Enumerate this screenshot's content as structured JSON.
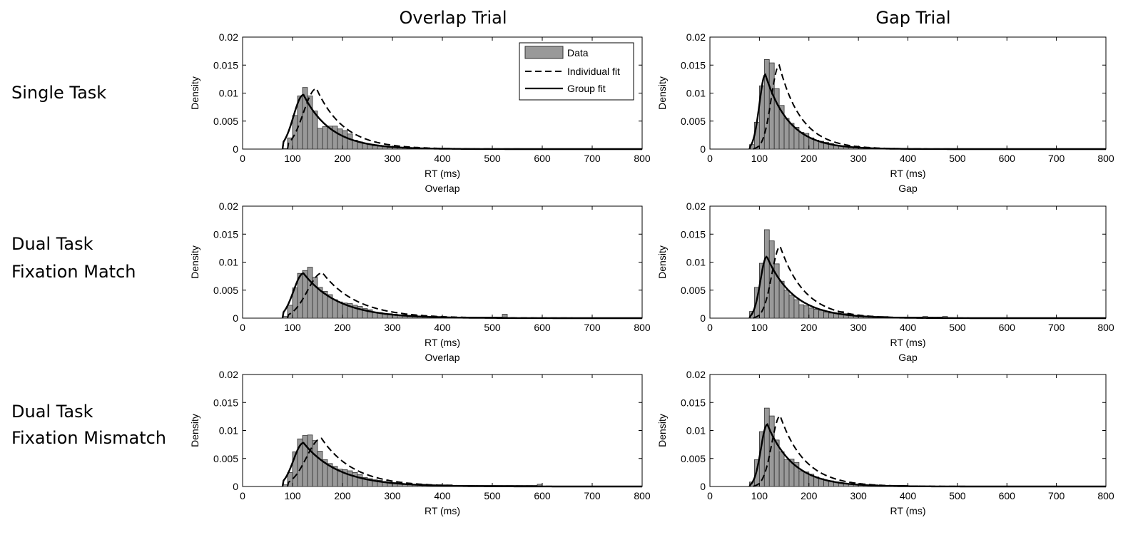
{
  "figure": {
    "column_titles": [
      "Overlap Trial",
      "Gap Trial"
    ],
    "row_labels": [
      [
        "Single Task"
      ],
      [
        "Dual Task",
        "Fixation Match"
      ],
      [
        "Dual Task",
        "Fixation Mismatch"
      ]
    ]
  },
  "colors": {
    "bar_fill": "#999999",
    "bar_stroke": "#333333",
    "line": "#000000"
  },
  "legend": {
    "entries": [
      "Data",
      "Individual fit",
      "Group fit"
    ]
  },
  "chart_data": [
    {
      "id": "single-overlap",
      "type": "bar",
      "xlabel": "RT (ms)",
      "ylabel": "Density",
      "subtitle_below": "Overlap",
      "xlim": [
        0,
        800
      ],
      "ylim": [
        0,
        0.02
      ],
      "xticks": [
        0,
        100,
        200,
        300,
        400,
        500,
        600,
        700,
        800
      ],
      "yticks": [
        0,
        0.005,
        0.01,
        0.015,
        0.02
      ],
      "ytick_labels": [
        "0",
        "0.005",
        "0.01",
        "0.015",
        "0.02"
      ],
      "bin_start": 80,
      "bin_width": 10,
      "values": [
        0.0001,
        0.002,
        0.006,
        0.0095,
        0.011,
        0.0095,
        0.0068,
        0.0037,
        0.004,
        0.0041,
        0.0041,
        0.0036,
        0.0033,
        0.0027,
        0.0016,
        0.0013,
        0.001,
        0.0008,
        0.0006,
        0.0005,
        0.0004,
        0.0003,
        0.0003,
        0.0002,
        0.0002,
        0.0002,
        0.0001,
        0.0001,
        0.0001,
        0.0001
      ],
      "individual_fit": {
        "onset": 90,
        "mode": 148,
        "peak": 0.0108,
        "sigma_left": 26,
        "tau": 55
      },
      "group_fit": {
        "onset": 80,
        "mode": 122,
        "peak": 0.0097,
        "sigma_left": 20,
        "tau": 55
      },
      "legend": true
    },
    {
      "id": "single-gap",
      "type": "bar",
      "xlabel": "RT (ms)",
      "ylabel": "Density",
      "subtitle_below": "Gap",
      "xlim": [
        0,
        800
      ],
      "ylim": [
        0,
        0.02
      ],
      "xticks": [
        0,
        100,
        200,
        300,
        400,
        500,
        600,
        700,
        800
      ],
      "yticks": [
        0,
        0.005,
        0.01,
        0.015,
        0.02
      ],
      "ytick_labels": [
        "0",
        "0.005",
        "0.01",
        "0.015",
        "0.02"
      ],
      "bin_start": 80,
      "bin_width": 10,
      "values": [
        0.0008,
        0.0048,
        0.0113,
        0.016,
        0.0154,
        0.0108,
        0.0078,
        0.0055,
        0.0046,
        0.0039,
        0.003,
        0.0028,
        0.002,
        0.0016,
        0.0014,
        0.0012,
        0.001,
        0.0007,
        0.0006,
        0.0005,
        0.0004,
        0.0003,
        0.0003,
        0.0002,
        0.0002,
        0.0001,
        0.0001,
        0.0001,
        0.0001,
        0.0001
      ],
      "individual_fit": {
        "onset": 88,
        "mode": 140,
        "peak": 0.015,
        "sigma_left": 16,
        "tau": 45
      },
      "group_fit": {
        "onset": 80,
        "mode": 112,
        "peak": 0.0133,
        "sigma_left": 12,
        "tau": 48
      }
    },
    {
      "id": "match-overlap",
      "type": "bar",
      "xlabel": "RT (ms)",
      "ylabel": "Density",
      "subtitle_below": "Overlap",
      "xlim": [
        0,
        800
      ],
      "ylim": [
        0,
        0.02
      ],
      "xticks": [
        0,
        100,
        200,
        300,
        400,
        500,
        600,
        700,
        800
      ],
      "yticks": [
        0,
        0.005,
        0.01,
        0.015,
        0.02
      ],
      "ytick_labels": [
        "0",
        "0.005",
        "0.01",
        "0.015",
        "0.02"
      ],
      "bin_start": 80,
      "bin_width": 10,
      "values": [
        0.0003,
        0.0023,
        0.0054,
        0.008,
        0.0085,
        0.0091,
        0.0073,
        0.0055,
        0.0048,
        0.0042,
        0.0033,
        0.0029,
        0.0027,
        0.0026,
        0.0023,
        0.0021,
        0.0017,
        0.0015,
        0.0011,
        0.001,
        0.0008,
        0.0008,
        0.0007,
        0.0006,
        0.0006,
        0.0005,
        0.0005,
        0.0004,
        0.0004,
        0.0003,
        0.0003,
        0.0003,
        0.0002,
        0.0002,
        0.0002,
        0.0002,
        0.0002,
        0.0002,
        0.0002,
        0.0002,
        0.0002,
        0.0002,
        0.0002,
        0.0002,
        0.0007
      ],
      "individual_fit": {
        "onset": 90,
        "mode": 160,
        "peak": 0.0081,
        "sigma_left": 30,
        "tau": 70
      },
      "group_fit": {
        "onset": 80,
        "mode": 122,
        "peak": 0.008,
        "sigma_left": 20,
        "tau": 70
      }
    },
    {
      "id": "match-gap",
      "type": "bar",
      "xlabel": "RT (ms)",
      "ylabel": "Density",
      "subtitle_below": "Gap",
      "xlim": [
        0,
        800
      ],
      "ylim": [
        0,
        0.02
      ],
      "xticks": [
        0,
        100,
        200,
        300,
        400,
        500,
        600,
        700,
        800
      ],
      "yticks": [
        0,
        0.005,
        0.01,
        0.015,
        0.02
      ],
      "ytick_labels": [
        "0",
        "0.005",
        "0.01",
        "0.015",
        "0.02"
      ],
      "bin_start": 80,
      "bin_width": 10,
      "values": [
        0.0012,
        0.0055,
        0.0098,
        0.0158,
        0.0138,
        0.0097,
        0.0066,
        0.005,
        0.0041,
        0.0033,
        0.0024,
        0.0022,
        0.0018,
        0.0016,
        0.0014,
        0.0011,
        0.0009,
        0.0008,
        0.0012,
        0.0008,
        0.0006,
        0.0005,
        0.0005,
        0.0004,
        0.0004,
        0.0003,
        0.0003,
        0.0003,
        0.0002,
        0.0002,
        0.0002,
        0.0002,
        0.0002,
        0.0002,
        0.0002,
        0.0003,
        0.0002,
        0.0002,
        0.0002,
        0.0003
      ],
      "individual_fit": {
        "onset": 88,
        "mode": 142,
        "peak": 0.0128,
        "sigma_left": 17,
        "tau": 50
      },
      "group_fit": {
        "onset": 80,
        "mode": 115,
        "peak": 0.011,
        "sigma_left": 13,
        "tau": 55
      }
    },
    {
      "id": "mismatch-overlap",
      "type": "bar",
      "xlabel": "RT (ms)",
      "ylabel": "Density",
      "subtitle_below": "",
      "xlim": [
        0,
        800
      ],
      "ylim": [
        0,
        0.02
      ],
      "xticks": [
        0,
        100,
        200,
        300,
        400,
        500,
        600,
        700,
        800
      ],
      "yticks": [
        0,
        0.005,
        0.01,
        0.015,
        0.02
      ],
      "ytick_labels": [
        "0",
        "0.005",
        "0.01",
        "0.015",
        "0.02"
      ],
      "bin_start": 80,
      "bin_width": 10,
      "values": [
        0.0003,
        0.0025,
        0.0062,
        0.0085,
        0.0091,
        0.0092,
        0.0082,
        0.0063,
        0.0048,
        0.0041,
        0.0036,
        0.0031,
        0.003,
        0.0028,
        0.0025,
        0.0021,
        0.0016,
        0.0014,
        0.0012,
        0.0011,
        0.0009,
        0.0008,
        0.0007,
        0.0006,
        0.0005,
        0.0005,
        0.0004,
        0.0004,
        0.0004,
        0.0003,
        0.0003,
        0.0003,
        0.0003,
        0.0003,
        0.0002,
        0.0002,
        0.0002,
        0.0002,
        0.0002,
        0.0002,
        0.0002,
        0.0002,
        0.0002,
        0.0002,
        0.0002,
        0.0002,
        0.0002,
        0.0002,
        0.0002,
        0.0002,
        0.0002,
        0.0004
      ],
      "individual_fit": {
        "onset": 90,
        "mode": 158,
        "peak": 0.0086,
        "sigma_left": 30,
        "tau": 65
      },
      "group_fit": {
        "onset": 80,
        "mode": 122,
        "peak": 0.0078,
        "sigma_left": 20,
        "tau": 70
      }
    },
    {
      "id": "mismatch-gap",
      "type": "bar",
      "xlabel": "RT (ms)",
      "ylabel": "Density",
      "subtitle_below": "",
      "xlim": [
        0,
        800
      ],
      "ylim": [
        0,
        0.02
      ],
      "xticks": [
        0,
        100,
        200,
        300,
        400,
        500,
        600,
        700,
        800
      ],
      "yticks": [
        0,
        0.005,
        0.01,
        0.015,
        0.02
      ],
      "ytick_labels": [
        "0",
        "0.005",
        "0.01",
        "0.015",
        "0.02"
      ],
      "bin_start": 80,
      "bin_width": 10,
      "values": [
        0.0008,
        0.0048,
        0.0098,
        0.014,
        0.0126,
        0.0083,
        0.0062,
        0.0048,
        0.0049,
        0.0043,
        0.0028,
        0.0026,
        0.0022,
        0.0017,
        0.0014,
        0.0011,
        0.001,
        0.0008,
        0.0006,
        0.0005,
        0.0005,
        0.0004,
        0.0004,
        0.0003,
        0.0003,
        0.0003,
        0.0002,
        0.0002,
        0.0002,
        0.0002,
        0.0002,
        0.0002
      ],
      "individual_fit": {
        "onset": 88,
        "mode": 142,
        "peak": 0.0126,
        "sigma_left": 17,
        "tau": 50
      },
      "group_fit": {
        "onset": 80,
        "mode": 116,
        "peak": 0.0111,
        "sigma_left": 13,
        "tau": 52
      }
    }
  ]
}
